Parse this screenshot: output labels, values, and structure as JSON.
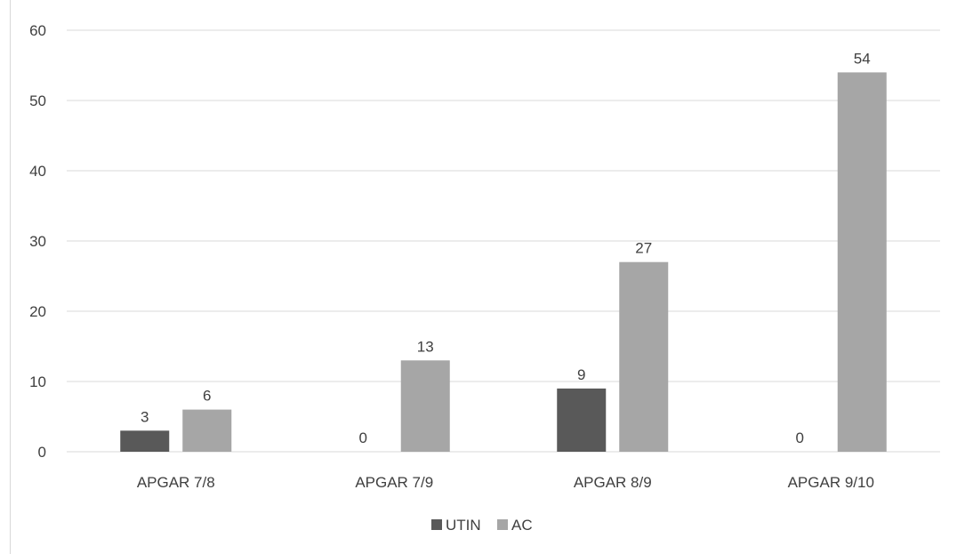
{
  "chart_data": {
    "type": "bar",
    "title": "",
    "xlabel": "",
    "ylabel": "",
    "categories": [
      "APGAR 7/8",
      "APGAR 7/9",
      "APGAR 8/9",
      "APGAR 9/10"
    ],
    "series": [
      {
        "name": "UTIN",
        "values": [
          3,
          0,
          9,
          0
        ],
        "color": "#595959"
      },
      {
        "name": "AC",
        "values": [
          6,
          13,
          27,
          54
        ],
        "color": "#a6a6a6"
      }
    ],
    "ylim": [
      0,
      60
    ],
    "yticks": [
      0,
      10,
      20,
      30,
      40,
      50,
      60
    ],
    "grid": true,
    "legend_position": "bottom",
    "data_labels": true
  }
}
